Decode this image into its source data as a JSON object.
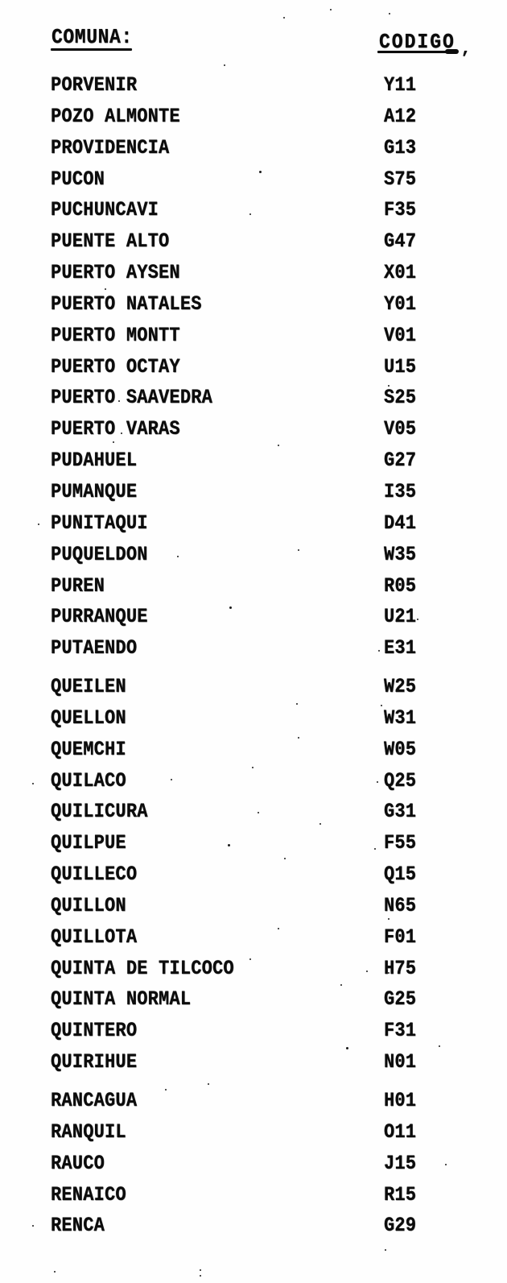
{
  "document": {
    "header": {
      "comuna_label": "COMUNA:",
      "codigo_label": "CODIGO",
      "after_codigo_mark": ","
    },
    "groups": [
      {
        "rows": [
          {
            "comuna": "PORVENIR",
            "codigo": "Y11"
          },
          {
            "comuna": "POZO ALMONTE",
            "codigo": "A12"
          },
          {
            "comuna": "PROVIDENCIA",
            "codigo": "G13"
          },
          {
            "comuna": "PUCON",
            "codigo": "S75"
          },
          {
            "comuna": "PUCHUNCAVI",
            "codigo": "F35"
          },
          {
            "comuna": "PUENTE ALTO",
            "codigo": "G47"
          },
          {
            "comuna": "PUERTO AYSEN",
            "codigo": "X01"
          },
          {
            "comuna": "PUERTO NATALES",
            "codigo": "Y01"
          },
          {
            "comuna": "PUERTO MONTT",
            "codigo": "V01"
          },
          {
            "comuna": "PUERTO OCTAY",
            "codigo": "U15"
          },
          {
            "comuna": "PUERTO SAAVEDRA",
            "codigo": "S25"
          },
          {
            "comuna": "PUERTO VARAS",
            "codigo": "V05"
          },
          {
            "comuna": "PUDAHUEL",
            "codigo": "G27"
          },
          {
            "comuna": "PUMANQUE",
            "codigo": "I35"
          },
          {
            "comuna": "PUNITAQUI",
            "codigo": "D41"
          },
          {
            "comuna": "PUQUELDON",
            "codigo": "W35"
          },
          {
            "comuna": "PUREN",
            "codigo": "R05"
          },
          {
            "comuna": "PURRANQUE",
            "codigo": "U21"
          },
          {
            "comuna": "PUTAENDO",
            "codigo": "E31"
          }
        ]
      },
      {
        "rows": [
          {
            "comuna": "QUEILEN",
            "codigo": "W25"
          },
          {
            "comuna": "QUELLON",
            "codigo": "W31"
          },
          {
            "comuna": "QUEMCHI",
            "codigo": "W05"
          },
          {
            "comuna": "QUILACO",
            "codigo": "Q25"
          },
          {
            "comuna": "QUILICURA",
            "codigo": "G31"
          },
          {
            "comuna": "QUILPUE",
            "codigo": "F55"
          },
          {
            "comuna": "QUILLECO",
            "codigo": "Q15"
          },
          {
            "comuna": "QUILLON",
            "codigo": "N65"
          },
          {
            "comuna": "QUILLOTA",
            "codigo": "F01"
          },
          {
            "comuna": "QUINTA DE TILCOCO",
            "codigo": "H75"
          },
          {
            "comuna": "QUINTA NORMAL",
            "codigo": "G25"
          },
          {
            "comuna": "QUINTERO",
            "codigo": "F31"
          },
          {
            "comuna": "QUIRIHUE",
            "codigo": "N01"
          }
        ]
      },
      {
        "rows": [
          {
            "comuna": "RANCAGUA",
            "codigo": "H01"
          },
          {
            "comuna": "RANQUIL",
            "codigo": "O11"
          },
          {
            "comuna": "RAUCO",
            "codigo": "J15"
          },
          {
            "comuna": "RENAICO",
            "codigo": "R15"
          },
          {
            "comuna": "RENCA",
            "codigo": "G29"
          }
        ]
      }
    ],
    "colors": {
      "ink": "#0c0c0c",
      "paper": "#fefefe"
    }
  }
}
